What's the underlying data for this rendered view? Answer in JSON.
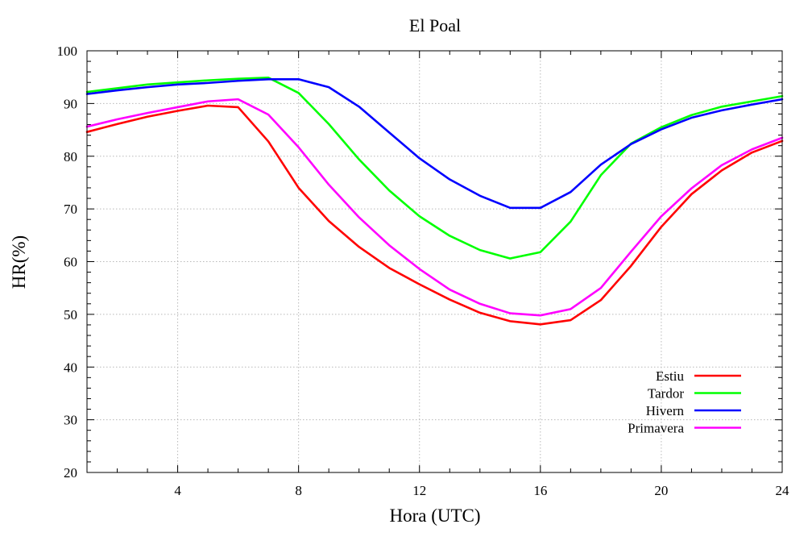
{
  "chart_data": {
    "type": "line",
    "title": "El Poal",
    "xlabel": "Hora (UTC)",
    "ylabel": "HR(%)",
    "xlim": [
      1,
      24
    ],
    "ylim": [
      20,
      100
    ],
    "x_ticks": [
      4,
      8,
      12,
      16,
      20,
      24
    ],
    "y_ticks": [
      20,
      30,
      40,
      50,
      60,
      70,
      80,
      90,
      100
    ],
    "x_minor_step": 1,
    "y_minor_step": 2,
    "grid": true,
    "legend_position": "bottom-right",
    "x": [
      1,
      2,
      3,
      4,
      5,
      6,
      7,
      8,
      9,
      10,
      11,
      12,
      13,
      14,
      15,
      16,
      17,
      18,
      19,
      20,
      21,
      22,
      23,
      24
    ],
    "series": [
      {
        "name": "Estiu",
        "color": "#ff0000",
        "values": [
          84.6,
          86.1,
          87.5,
          88.6,
          89.6,
          89.3,
          82.8,
          74.0,
          67.7,
          62.8,
          58.8,
          55.7,
          52.8,
          50.3,
          48.7,
          48.1,
          48.9,
          52.7,
          59.2,
          66.6,
          72.8,
          77.3,
          80.7,
          82.9
        ]
      },
      {
        "name": "Tardor",
        "color": "#00ff00",
        "values": [
          92.2,
          92.9,
          93.6,
          94.0,
          94.4,
          94.7,
          94.9,
          92.0,
          86.1,
          79.4,
          73.5,
          68.6,
          64.9,
          62.2,
          60.6,
          61.8,
          67.6,
          76.4,
          82.4,
          85.5,
          87.8,
          89.4,
          90.4,
          91.4
        ]
      },
      {
        "name": "Hivern",
        "color": "#0000ff",
        "values": [
          91.8,
          92.5,
          93.1,
          93.6,
          93.9,
          94.3,
          94.6,
          94.6,
          93.1,
          89.4,
          84.5,
          79.6,
          75.6,
          72.5,
          70.2,
          70.2,
          73.2,
          78.4,
          82.3,
          85.1,
          87.3,
          88.7,
          89.8,
          90.8
        ]
      },
      {
        "name": "Primavera",
        "color": "#ff00ff",
        "values": [
          85.6,
          87.0,
          88.2,
          89.3,
          90.4,
          90.8,
          87.9,
          81.7,
          74.6,
          68.4,
          63.1,
          58.6,
          54.7,
          52.0,
          50.2,
          49.8,
          51.0,
          55.0,
          61.9,
          68.6,
          73.9,
          78.3,
          81.3,
          83.5
        ]
      }
    ]
  }
}
